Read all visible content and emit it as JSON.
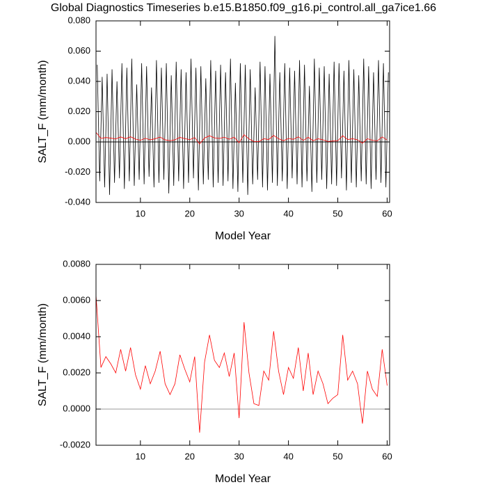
{
  "chart_data": [
    {
      "type": "line",
      "title": "Global Diagnostics Timeseries b.e15.B1850.f09_g16.pi_control.all_ga7ice1.66",
      "xlabel": "Model Year",
      "ylabel": "SALT_F (mm/month)",
      "xlim": [
        1,
        60.5
      ],
      "xticks": [
        10,
        20,
        30,
        40,
        50,
        60
      ],
      "ylim": [
        -0.04,
        0.08
      ],
      "yticks": [
        {
          "value": -0.04,
          "label": "-0.040"
        },
        {
          "value": -0.02,
          "label": "-0.020"
        },
        {
          "value": 0,
          "label": "0.000"
        },
        {
          "value": 0.02,
          "label": "0.020"
        },
        {
          "value": 0.04,
          "label": "0.040"
        },
        {
          "value": 0.06,
          "label": "0.060"
        },
        {
          "value": 0.08,
          "label": "0.080"
        }
      ],
      "reference_line": {
        "value": 0,
        "color": "#000000"
      },
      "series": [
        {
          "color": "#000000",
          "x": [
            1.25,
            1.75,
            2.25,
            2.75,
            3.25,
            3.75,
            4.25,
            4.75,
            5.25,
            5.75,
            6.25,
            6.75,
            7.25,
            7.75,
            8.25,
            8.75,
            9.25,
            9.75,
            10.25,
            10.75,
            11.25,
            11.75,
            12.25,
            12.75,
            13.25,
            13.75,
            14.25,
            14.75,
            15.25,
            15.75,
            16.25,
            16.75,
            17.25,
            17.75,
            18.25,
            18.75,
            19.25,
            19.75,
            20.25,
            20.75,
            21.25,
            21.75,
            22.25,
            22.75,
            23.25,
            23.75,
            24.25,
            24.75,
            25.25,
            25.75,
            26.25,
            26.75,
            27.25,
            27.75,
            28.25,
            28.75,
            29.25,
            29.75,
            30.25,
            30.75,
            31.25,
            31.75,
            32.25,
            32.75,
            33.25,
            33.75,
            34.25,
            34.75,
            35.25,
            35.75,
            36.25,
            36.75,
            37.25,
            37.75,
            38.25,
            38.75,
            39.25,
            39.75,
            40.25,
            40.75,
            41.25,
            41.75,
            42.25,
            42.75,
            43.25,
            43.75,
            44.25,
            44.75,
            45.25,
            45.75,
            46.25,
            46.75,
            47.25,
            47.75,
            48.25,
            48.75,
            49.25,
            49.75,
            50.25,
            50.75,
            51.25,
            51.75,
            52.25,
            52.75,
            53.25,
            53.75,
            54.25,
            54.75,
            55.25,
            55.75,
            56.25,
            56.75,
            57.25,
            57.75,
            58.25,
            58.75,
            59.25,
            59.75,
            60.25
          ],
          "values": [
            0.051,
            -0.026,
            0.043,
            -0.03,
            0.045,
            -0.035,
            0.048,
            -0.027,
            0.04,
            -0.024,
            0.052,
            -0.031,
            0.049,
            -0.026,
            0.055,
            -0.029,
            0.038,
            -0.025,
            0.052,
            -0.028,
            0.05,
            -0.023,
            0.036,
            -0.03,
            0.054,
            -0.027,
            0.049,
            -0.025,
            0.052,
            -0.034,
            0.044,
            -0.029,
            0.053,
            -0.026,
            0.048,
            -0.031,
            0.046,
            -0.027,
            0.055,
            -0.024,
            0.049,
            -0.032,
            0.05,
            -0.028,
            0.042,
            -0.025,
            0.054,
            -0.03,
            0.047,
            -0.027,
            0.051,
            -0.029,
            0.046,
            -0.026,
            0.055,
            -0.031,
            0.039,
            -0.033,
            0.052,
            -0.027,
            0.051,
            -0.035,
            0.048,
            -0.028,
            0.036,
            -0.025,
            0.053,
            -0.03,
            0.05,
            -0.032,
            0.045,
            -0.027,
            0.07,
            -0.029,
            0.046,
            -0.026,
            0.052,
            -0.031,
            0.049,
            -0.024,
            0.047,
            -0.028,
            0.054,
            -0.03,
            0.051,
            -0.026,
            0.037,
            -0.033,
            0.055,
            -0.027,
            0.049,
            -0.025,
            0.05,
            -0.031,
            0.045,
            -0.028,
            0.053,
            -0.029,
            0.052,
            -0.024,
            0.047,
            -0.032,
            0.054,
            -0.027,
            0.048,
            -0.03,
            0.044,
            -0.026,
            0.055,
            -0.028,
            0.05,
            -0.031,
            0.046,
            -0.025,
            0.054,
            -0.027,
            0.052,
            -0.03,
            0.046
          ]
        },
        {
          "color": "#ff0000",
          "x": [
            1,
            2,
            3,
            4,
            5,
            6,
            7,
            8,
            9,
            10,
            11,
            12,
            13,
            14,
            15,
            16,
            17,
            18,
            19,
            20,
            21,
            22,
            23,
            24,
            25,
            26,
            27,
            28,
            29,
            30,
            31,
            32,
            33,
            34,
            35,
            36,
            37,
            38,
            39,
            40,
            41,
            42,
            43,
            44,
            45,
            46,
            47,
            48,
            49,
            50,
            51,
            52,
            53,
            54,
            55,
            56,
            57,
            58,
            59,
            60
          ],
          "values": [
            0.0063,
            0.0023,
            0.0029,
            0.0025,
            0.002,
            0.0033,
            0.0021,
            0.0034,
            0.0019,
            0.0011,
            0.0024,
            0.0014,
            0.0021,
            0.0032,
            0.0014,
            0.0008,
            0.0014,
            0.003,
            0.0022,
            0.0015,
            0.0029,
            -0.0013,
            0.0026,
            0.0041,
            0.0027,
            0.0023,
            0.0031,
            0.0018,
            0.0031,
            -0.0005,
            0.0048,
            0.002,
            0.0003,
            0.0002,
            0.0021,
            0.0016,
            0.0043,
            0.0021,
            0.0008,
            0.0023,
            0.0017,
            0.0034,
            0.001,
            0.0031,
            0.0008,
            0.0021,
            0.0014,
            0.0003,
            0.0006,
            0.0008,
            0.0041,
            0.0016,
            0.0021,
            0.0014,
            -0.0008,
            0.0021,
            0.0011,
            0.0007,
            0.0033,
            0.0013
          ]
        }
      ]
    },
    {
      "type": "line",
      "xlabel": "Model Year",
      "ylabel": "SALT_F (mm/month)",
      "xlim": [
        1,
        60.5
      ],
      "xticks": [
        10,
        20,
        30,
        40,
        50,
        60
      ],
      "ylim": [
        -0.002,
        0.008
      ],
      "yticks": [
        {
          "value": -0.002,
          "label": "-0.0020"
        },
        {
          "value": 0,
          "label": "0.0000"
        },
        {
          "value": 0.002,
          "label": "0.0020"
        },
        {
          "value": 0.004,
          "label": "0.0040"
        },
        {
          "value": 0.006,
          "label": "0.0060"
        },
        {
          "value": 0.008,
          "label": "0.0080"
        }
      ],
      "reference_line": {
        "value": 0,
        "color": "#999999"
      },
      "series": [
        {
          "color": "#ff0000",
          "x": [
            1,
            2,
            3,
            4,
            5,
            6,
            7,
            8,
            9,
            10,
            11,
            12,
            13,
            14,
            15,
            16,
            17,
            18,
            19,
            20,
            21,
            22,
            23,
            24,
            25,
            26,
            27,
            28,
            29,
            30,
            31,
            32,
            33,
            34,
            35,
            36,
            37,
            38,
            39,
            40,
            41,
            42,
            43,
            44,
            45,
            46,
            47,
            48,
            49,
            50,
            51,
            52,
            53,
            54,
            55,
            56,
            57,
            58,
            59,
            60
          ],
          "values": [
            0.0063,
            0.0023,
            0.0029,
            0.0025,
            0.002,
            0.0033,
            0.0021,
            0.0034,
            0.0019,
            0.0011,
            0.0024,
            0.0014,
            0.0021,
            0.0032,
            0.0014,
            0.0008,
            0.0014,
            0.003,
            0.0022,
            0.0015,
            0.0029,
            -0.0013,
            0.0026,
            0.0041,
            0.0027,
            0.0023,
            0.0031,
            0.0018,
            0.0031,
            -0.0005,
            0.0048,
            0.002,
            0.0003,
            0.0002,
            0.0021,
            0.0016,
            0.0043,
            0.0021,
            0.0008,
            0.0023,
            0.0017,
            0.0034,
            0.001,
            0.0031,
            0.0008,
            0.0021,
            0.0014,
            0.0003,
            0.0006,
            0.0008,
            0.0041,
            0.0016,
            0.0021,
            0.0014,
            -0.0008,
            0.0021,
            0.0011,
            0.0007,
            0.0033,
            0.0013
          ]
        }
      ]
    }
  ]
}
